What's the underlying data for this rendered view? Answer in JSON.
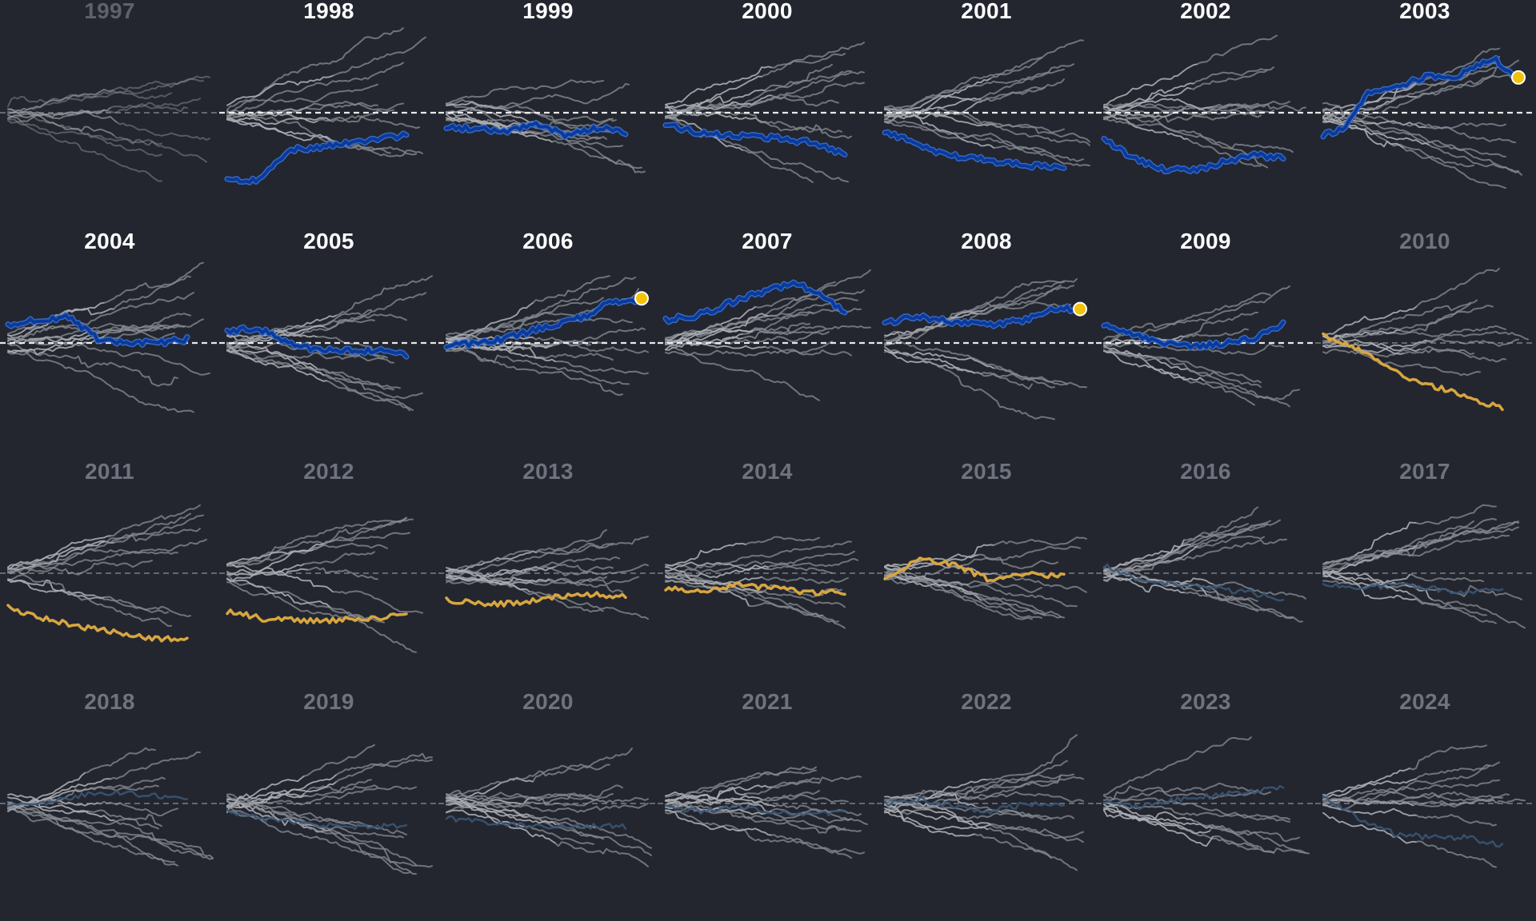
{
  "colors": {
    "background": "#23262f",
    "grey_line": "#8a8d94",
    "grey_light": "#d9dadd",
    "blue": "#0a3a9a",
    "blue_edge": "#3a6fd1",
    "dim_blue": "#3a5573",
    "orange": "#d8a640",
    "marker": "#f2c20a",
    "label_active": "#ffffff",
    "label_inactive": "#6f737d"
  },
  "chart_data": {
    "type": "line",
    "title": "",
    "xlabel": "",
    "ylabel": "",
    "baseline": "dashed horizontal reference line in every panel",
    "panels": [
      {
        "year": "1997",
        "status": "dim",
        "highlight": null,
        "marker": false
      },
      {
        "year": "1998",
        "status": "active",
        "highlight": "blue",
        "marker": false,
        "trend": [
          -0.9,
          -0.9,
          -0.5,
          -0.45,
          -0.4,
          -0.35,
          -0.3
        ]
      },
      {
        "year": "1999",
        "status": "active",
        "highlight": "blue",
        "marker": false,
        "trend": [
          -0.2,
          -0.2,
          -0.25,
          -0.15,
          -0.3,
          -0.2,
          -0.25
        ]
      },
      {
        "year": "2000",
        "status": "active",
        "highlight": "blue",
        "marker": false,
        "trend": [
          -0.15,
          -0.25,
          -0.3,
          -0.3,
          -0.35,
          -0.4,
          -0.55
        ]
      },
      {
        "year": "2001",
        "status": "active",
        "highlight": "blue",
        "marker": false,
        "trend": [
          -0.25,
          -0.4,
          -0.55,
          -0.6,
          -0.65,
          -0.7,
          -0.72
        ]
      },
      {
        "year": "2002",
        "status": "active",
        "highlight": "blue",
        "marker": false,
        "trend": [
          -0.35,
          -0.6,
          -0.75,
          -0.75,
          -0.65,
          -0.55,
          -0.6
        ]
      },
      {
        "year": "2003",
        "status": "active",
        "highlight": "blue",
        "marker": true,
        "trend": [
          -0.3,
          -0.2,
          0.25,
          0.3,
          0.4,
          0.5,
          0.45,
          0.6,
          0.7,
          0.45
        ]
      },
      {
        "year": "2004",
        "status": "active",
        "highlight": "blue",
        "marker": false,
        "trend": [
          0.25,
          0.3,
          0.35,
          0.05,
          0.0,
          0.0,
          0.05
        ]
      },
      {
        "year": "2005",
        "status": "active",
        "highlight": "blue",
        "marker": false,
        "trend": [
          0.15,
          0.2,
          0.0,
          -0.1,
          -0.1,
          -0.1,
          -0.15
        ]
      },
      {
        "year": "2006",
        "status": "active",
        "highlight": "blue",
        "marker": true,
        "trend": [
          -0.05,
          0.0,
          0.05,
          0.15,
          0.25,
          0.35,
          0.55,
          0.55
        ]
      },
      {
        "year": "2007",
        "status": "active",
        "highlight": "blue",
        "marker": false,
        "trend": [
          0.3,
          0.35,
          0.45,
          0.6,
          0.7,
          0.8,
          0.65,
          0.4
        ]
      },
      {
        "year": "2008",
        "status": "active",
        "highlight": "blue",
        "marker": true,
        "trend": [
          0.25,
          0.35,
          0.3,
          0.25,
          0.25,
          0.3,
          0.45,
          0.45
        ]
      },
      {
        "year": "2009",
        "status": "active",
        "highlight": "blue",
        "marker": false,
        "trend": [
          0.25,
          0.1,
          0.0,
          -0.05,
          0.0,
          0.05,
          0.25
        ]
      },
      {
        "year": "2010",
        "status": "inactive",
        "highlight": "orange",
        "marker": false,
        "trend": [
          0.1,
          -0.05,
          -0.25,
          -0.5,
          -0.6,
          -0.75,
          -0.85
        ]
      },
      {
        "year": "2011",
        "status": "inactive",
        "highlight": "orange",
        "marker": false,
        "trend": [
          -0.45,
          -0.6,
          -0.7,
          -0.78,
          -0.85,
          -0.88
        ]
      },
      {
        "year": "2012",
        "status": "inactive",
        "highlight": "orange",
        "marker": false,
        "trend": [
          -0.5,
          -0.6,
          -0.62,
          -0.62,
          -0.6,
          -0.55
        ]
      },
      {
        "year": "2013",
        "status": "inactive",
        "highlight": "orange",
        "marker": false,
        "trend": [
          -0.35,
          -0.4,
          -0.4,
          -0.3,
          -0.28,
          -0.3
        ]
      },
      {
        "year": "2014",
        "status": "inactive",
        "highlight": "orange",
        "marker": false,
        "trend": [
          -0.2,
          -0.25,
          -0.15,
          -0.2,
          -0.25,
          -0.25
        ]
      },
      {
        "year": "2015",
        "status": "inactive",
        "highlight": "orange",
        "marker": false,
        "trend": [
          -0.1,
          0.2,
          0.1,
          -0.1,
          0.0,
          -0.05
        ]
      },
      {
        "year": "2016",
        "status": "inactive",
        "highlight": "dimblue",
        "marker": false,
        "trend": [
          0.1,
          -0.1,
          -0.15,
          -0.2,
          -0.25,
          -0.35
        ]
      },
      {
        "year": "2017",
        "status": "inactive",
        "highlight": "dimblue",
        "marker": false,
        "trend": [
          -0.15,
          -0.2,
          -0.15,
          -0.2,
          -0.25,
          -0.2
        ]
      },
      {
        "year": "2018",
        "status": "inactive",
        "highlight": "dimblue",
        "marker": false,
        "trend": [
          -0.05,
          0.0,
          0.1,
          0.15,
          0.1,
          0.05
        ]
      },
      {
        "year": "2019",
        "status": "inactive",
        "highlight": "dimblue",
        "marker": false,
        "trend": [
          -0.1,
          -0.2,
          -0.25,
          -0.3,
          -0.3,
          -0.3
        ]
      },
      {
        "year": "2020",
        "status": "inactive",
        "highlight": "dimblue",
        "marker": false,
        "trend": [
          -0.2,
          -0.25,
          -0.3,
          -0.3,
          -0.3
        ]
      },
      {
        "year": "2021",
        "status": "inactive",
        "highlight": "dimblue",
        "marker": false,
        "trend": [
          -0.05,
          -0.1,
          -0.05,
          -0.1,
          -0.15,
          -0.1
        ]
      },
      {
        "year": "2022",
        "status": "inactive",
        "highlight": "dimblue",
        "marker": false,
        "trend": [
          0.0,
          0.05,
          -0.05,
          -0.1,
          0.0,
          -0.05
        ]
      },
      {
        "year": "2023",
        "status": "inactive",
        "highlight": "dimblue",
        "marker": false,
        "trend": [
          0.0,
          -0.05,
          0.05,
          0.1,
          0.15,
          0.2
        ]
      },
      {
        "year": "2024",
        "status": "inactive",
        "highlight": "dimblue",
        "marker": false,
        "trend": [
          0.1,
          -0.2,
          -0.4,
          -0.45,
          -0.45,
          -0.55
        ]
      }
    ]
  }
}
